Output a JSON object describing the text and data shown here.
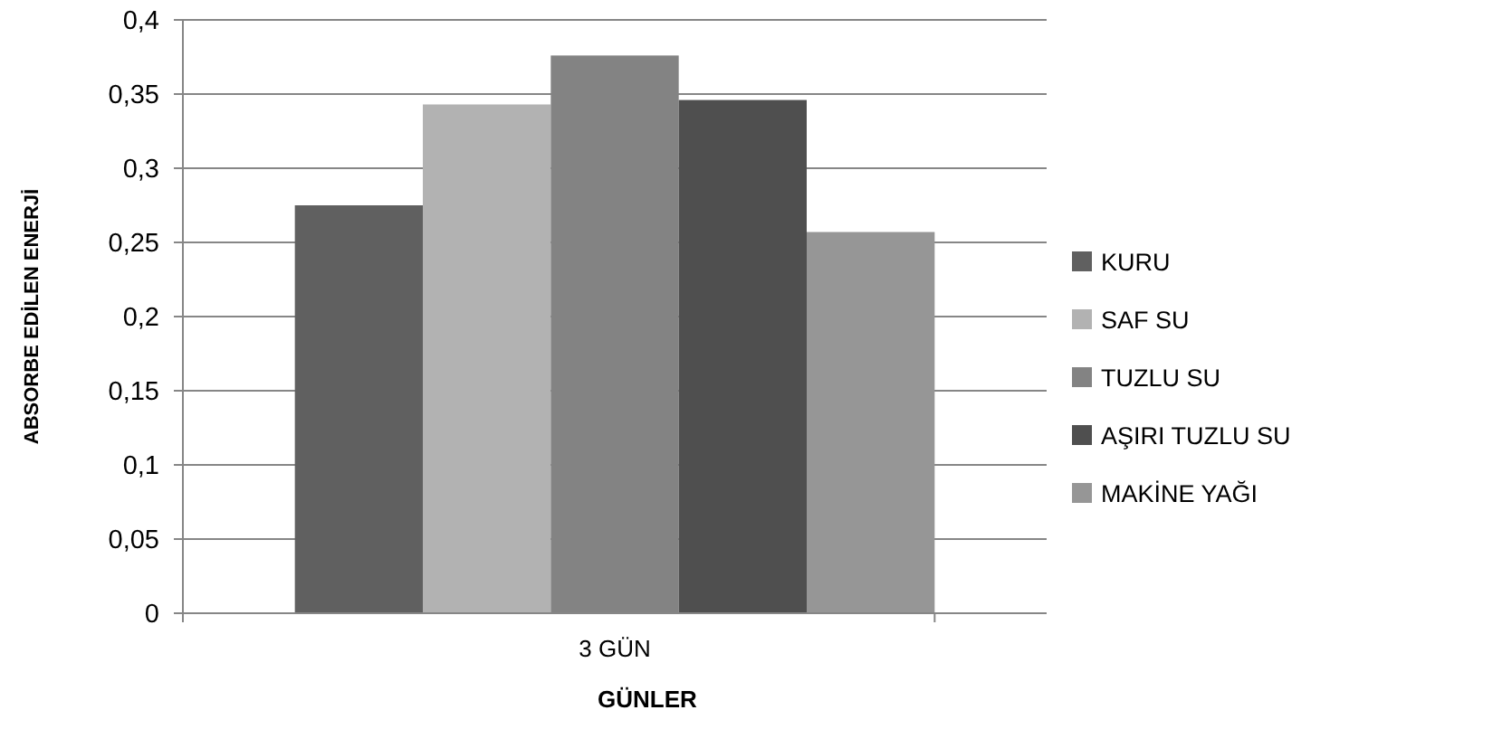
{
  "chart_data": {
    "type": "bar",
    "xlabel": "GÜNLER",
    "ylabel": "ABSORBE EDİLEN ENERJİ",
    "categories": [
      "3 GÜN"
    ],
    "series": [
      {
        "name": "KURU",
        "color": "#606060",
        "values": [
          0.275
        ]
      },
      {
        "name": "SAF SU",
        "color": "#b2b2b2",
        "values": [
          0.343
        ]
      },
      {
        "name": "TUZLU SU",
        "color": "#838383",
        "values": [
          0.376
        ]
      },
      {
        "name": "AŞIRI TUZLU SU",
        "color": "#4f4f4f",
        "values": [
          0.346
        ]
      },
      {
        "name": "MAKİNE YAĞI",
        "color": "#969696",
        "values": [
          0.257
        ]
      }
    ],
    "ylim": [
      0,
      0.4
    ],
    "yticks": [
      {
        "value": 0,
        "label": "0"
      },
      {
        "value": 0.05,
        "label": "0,05"
      },
      {
        "value": 0.1,
        "label": "0,1"
      },
      {
        "value": 0.15,
        "label": "0,15"
      },
      {
        "value": 0.2,
        "label": "0,2"
      },
      {
        "value": 0.25,
        "label": "0,25"
      },
      {
        "value": 0.3,
        "label": "0,3"
      },
      {
        "value": 0.35,
        "label": "0,35"
      },
      {
        "value": 0.4,
        "label": "0,4"
      }
    ],
    "grid": "y",
    "legend": "right"
  }
}
